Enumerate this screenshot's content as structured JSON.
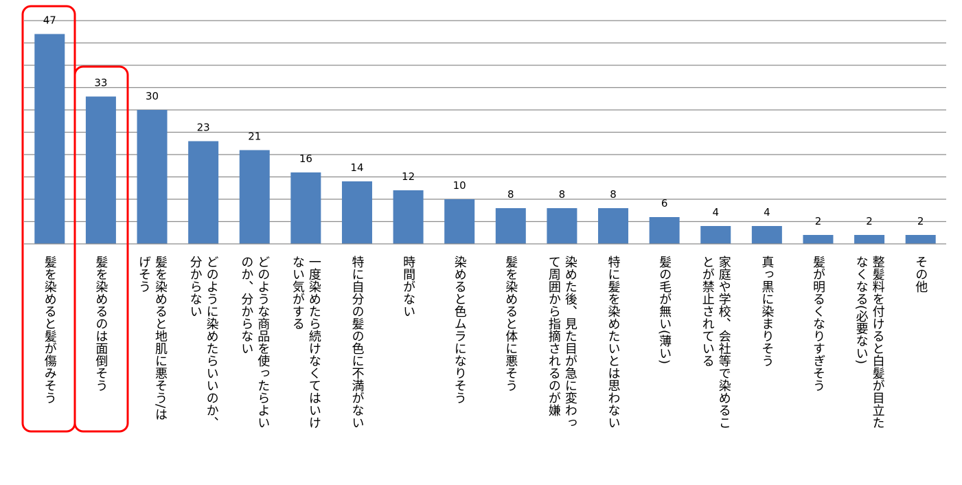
{
  "chart_data": {
    "type": "bar",
    "title": "",
    "xlabel": "",
    "ylabel": "",
    "ylim": [
      0,
      50
    ],
    "grid": true,
    "bar_color": "#4f81bd",
    "highlight_color": "#ff0000",
    "highlighted": [
      0,
      1
    ],
    "categories": [
      [
        "髪を染めると髪が傷みそう"
      ],
      [
        "髪を染めるのは面倒そう"
      ],
      [
        "髪を染めると地肌に悪そう/は",
        "げそう"
      ],
      [
        "どのように染めたらいいのか、",
        "分からない"
      ],
      [
        "どのような商品を使ったらよい",
        "のか、分からない"
      ],
      [
        "一度染めたら続けなくてはいけ",
        "ない気がする"
      ],
      [
        "特に自分の髪の色に不満がない"
      ],
      [
        "時間がない"
      ],
      [
        "染めると色ムラになりそう"
      ],
      [
        "髪を染めると体に悪そう"
      ],
      [
        "染めた後、見た目が急に変わっ",
        "て周囲から指摘されるのが嫌"
      ],
      [
        "特に髪を染めたいとは思わない"
      ],
      [
        "髪の毛が無い(薄い)"
      ],
      [
        "家庭や学校、会社等で染めるこ",
        "とが禁止されている"
      ],
      [
        "真っ黒に染まりそう"
      ],
      [
        "髪が明るくなりすぎそう"
      ],
      [
        "整髪料を付けると白髪が目立た",
        "なくなる(必要ない)"
      ],
      [
        "その他"
      ]
    ],
    "values": [
      47,
      33,
      30,
      23,
      21,
      16,
      14,
      12,
      10,
      8,
      8,
      8,
      6,
      4,
      4,
      2,
      2,
      2
    ],
    "value_labels": [
      "47",
      "33",
      "30",
      "23",
      "21",
      "16",
      "14",
      "12",
      "10",
      "8",
      "8",
      "8",
      "6",
      "4",
      "4",
      "2",
      "2",
      "2"
    ]
  }
}
